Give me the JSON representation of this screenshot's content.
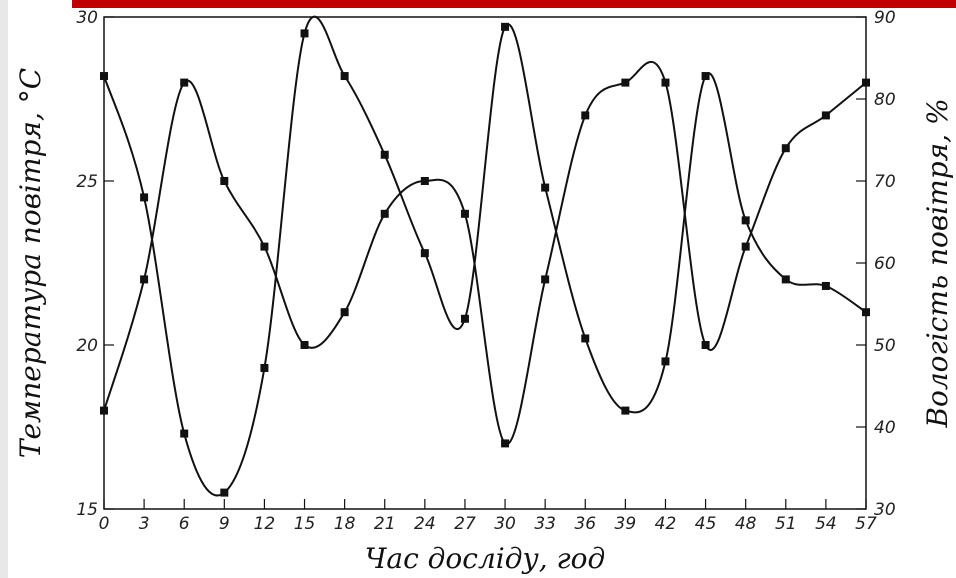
{
  "colors": {
    "banner": "#c00000",
    "line": "#111111",
    "background": "#ffffff",
    "strip": "#e8e8e8"
  },
  "chart_data": {
    "type": "line",
    "title": "",
    "xlabel": "Час досліду, год",
    "ylabel_left": "Температура повітря, °С",
    "ylabel_right": "Вологість повітря, %",
    "x_ticks": [
      "0",
      "3",
      "6",
      "9",
      "12",
      "15",
      "18",
      "21",
      "24",
      "27",
      "30",
      "33",
      "36",
      "39",
      "42",
      "45",
      "48",
      "51",
      "54",
      "57"
    ],
    "y_left_ticks": [
      "15",
      "20",
      "25",
      "30"
    ],
    "y_right_ticks": [
      "30",
      "40",
      "50",
      "60",
      "70",
      "80",
      "90"
    ],
    "xlim": [
      0,
      57
    ],
    "ylim_left": [
      15,
      30
    ],
    "ylim_right": [
      30,
      90
    ],
    "grid": false,
    "legend": "none",
    "series": [
      {
        "axis": "left",
        "marker": "square",
        "x": [
          0,
          3,
          6,
          9,
          12,
          15,
          18,
          21,
          24,
          27,
          30,
          33,
          36,
          39,
          42,
          45,
          48,
          51,
          54,
          57
        ],
        "y": [
          28.2,
          24.5,
          17.3,
          15.5,
          19.3,
          29.5,
          28.2,
          25.8,
          22.8,
          20.8,
          29.7,
          24.8,
          20.2,
          18.0,
          19.5,
          28.2,
          23.8,
          22.0,
          21.8,
          21.0
        ]
      },
      {
        "axis": "right",
        "marker": "square",
        "x": [
          0,
          3,
          6,
          9,
          12,
          15,
          18,
          21,
          24,
          27,
          30,
          33,
          36,
          39,
          42,
          45,
          48,
          51,
          54,
          57
        ],
        "y": [
          42,
          58,
          82,
          70,
          62,
          50,
          54,
          66,
          70,
          66,
          38,
          58,
          78,
          82,
          82,
          50,
          62,
          74,
          78,
          82
        ]
      }
    ]
  }
}
